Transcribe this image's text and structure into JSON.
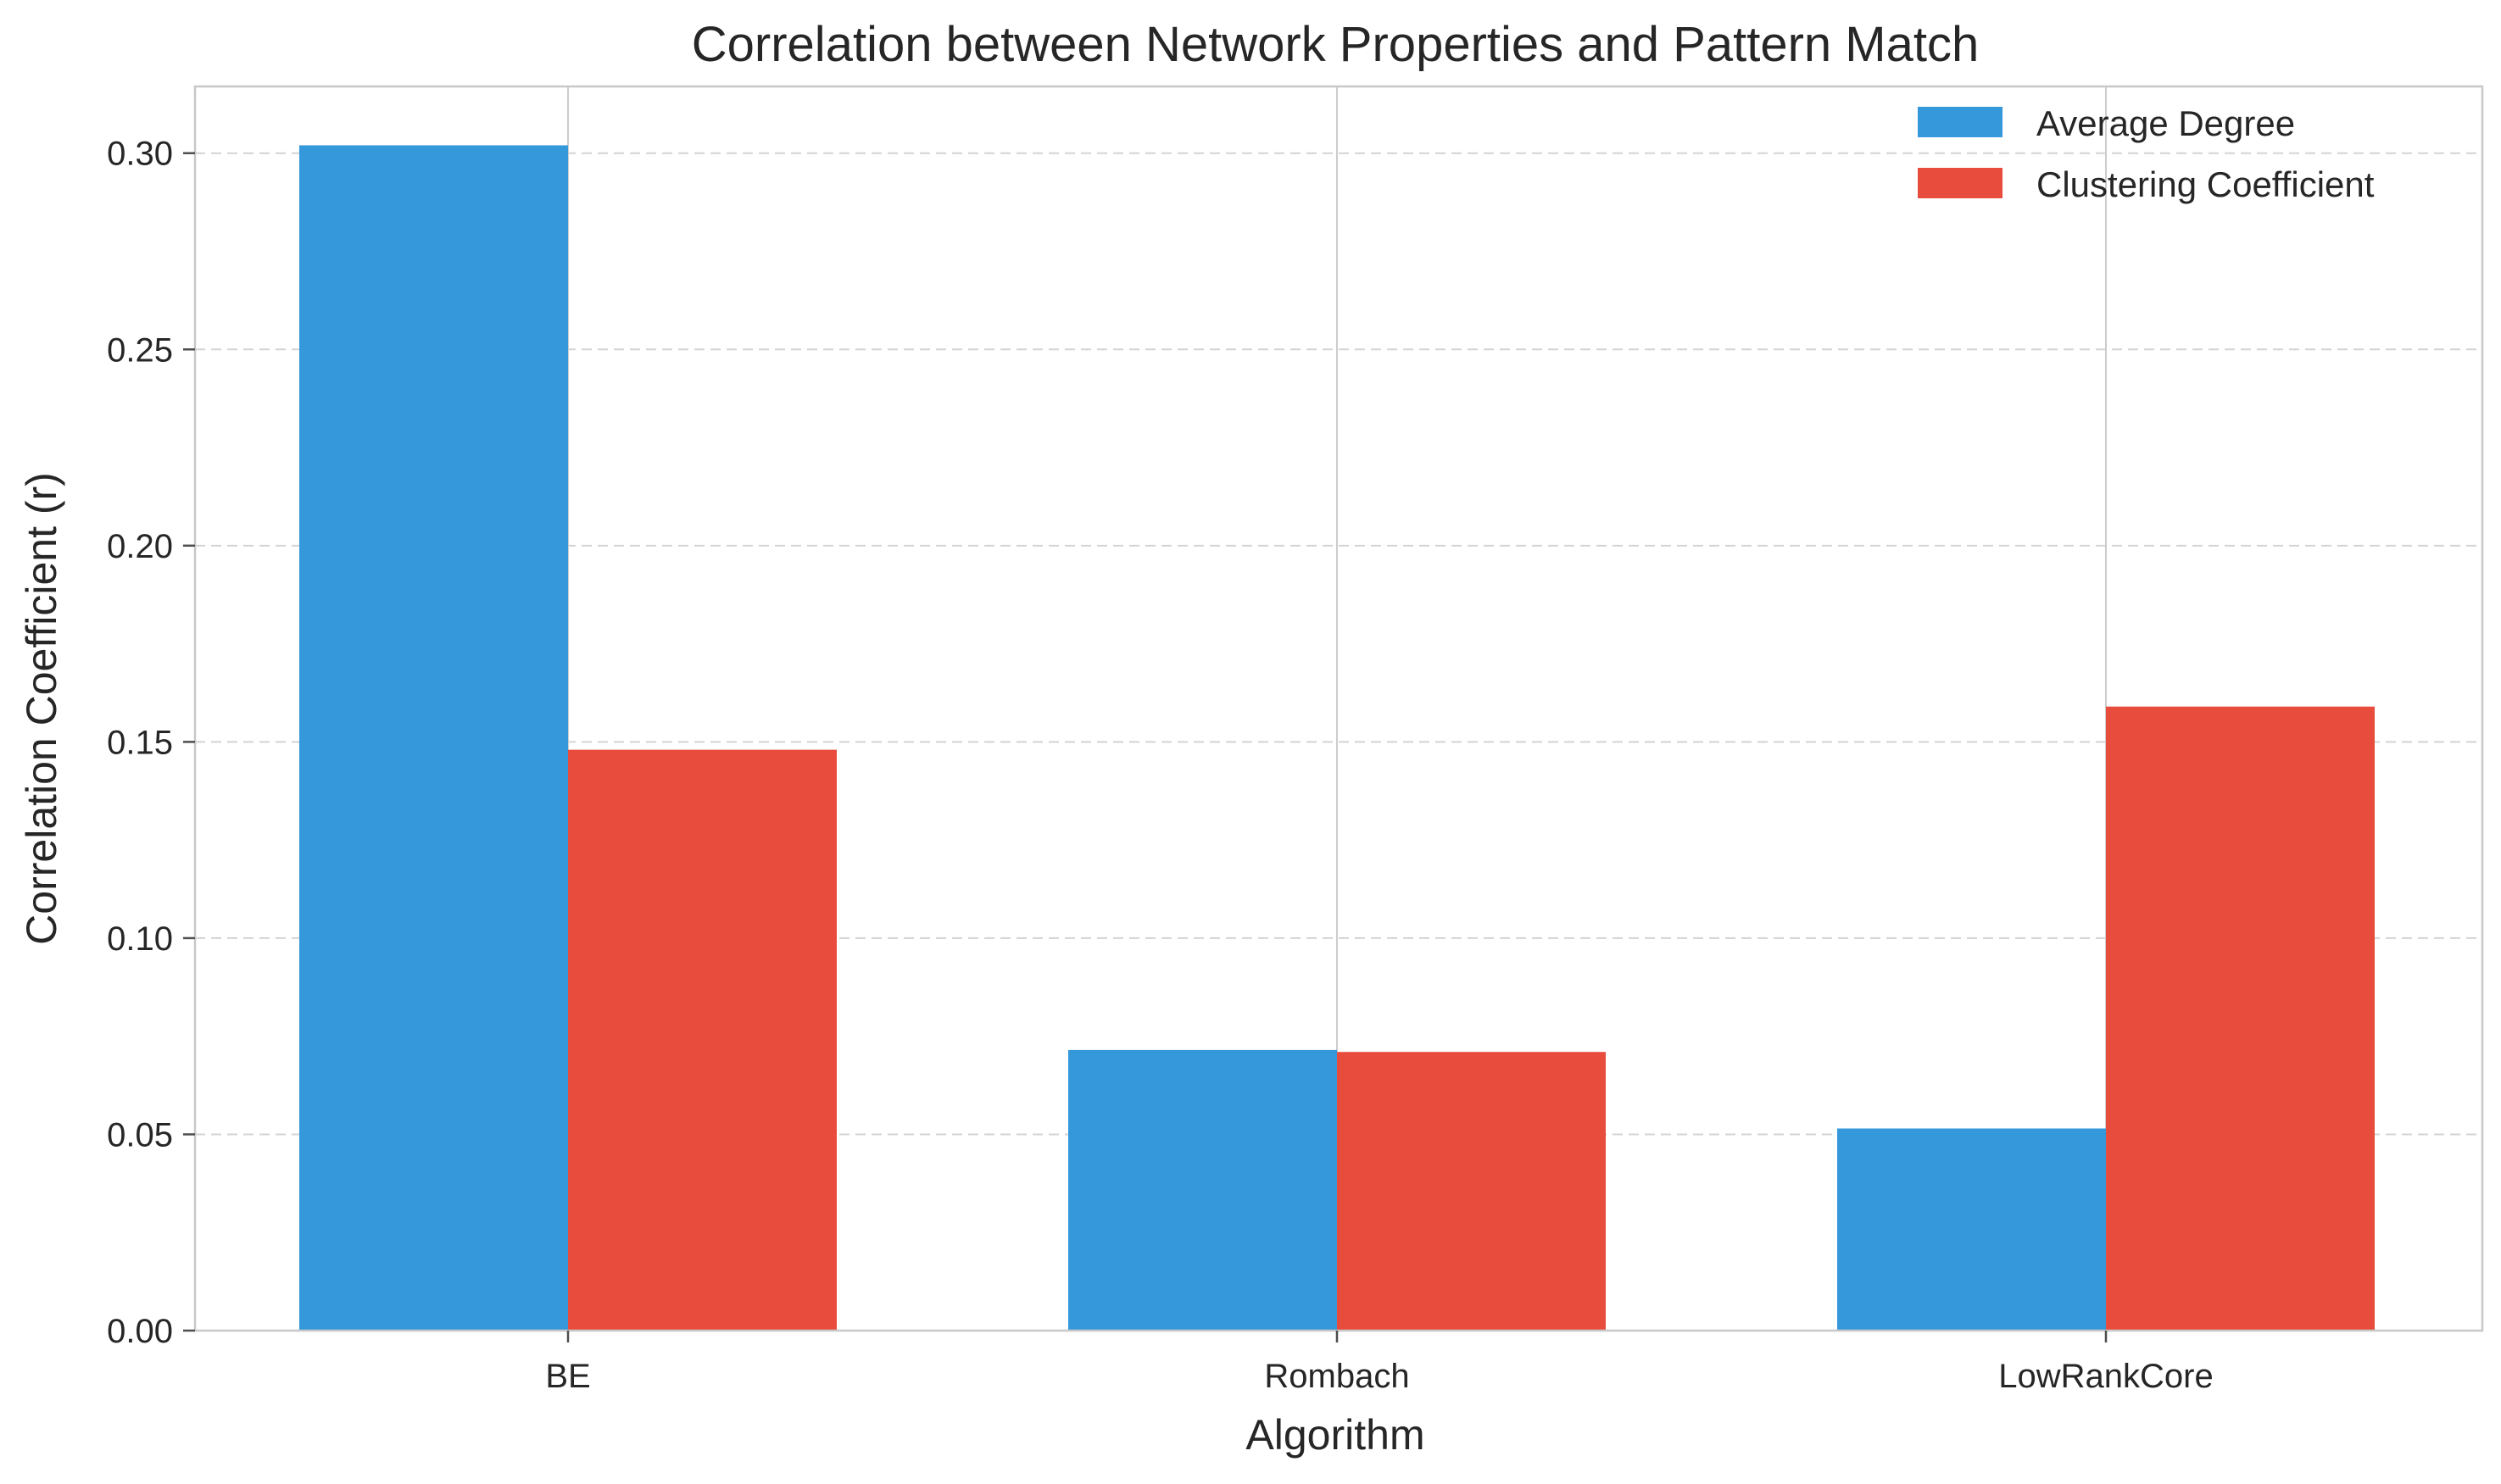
{
  "chart_data": {
    "type": "bar",
    "title": "Correlation between Network Properties and Pattern Match",
    "xlabel": "Algorithm",
    "ylabel": "Correlation Coefficient (r)",
    "categories": [
      "BE",
      "Rombach",
      "LowRankCore"
    ],
    "series": [
      {
        "name": "Average Degree",
        "color": "#3498db",
        "values": [
          0.302,
          0.0715,
          0.0515
        ]
      },
      {
        "name": "Clustering Coefficient",
        "color": "#e74c3c",
        "values": [
          0.148,
          0.071,
          0.159
        ]
      }
    ],
    "ylim": [
      0,
      0.317
    ],
    "yticks": [
      0.0,
      0.05,
      0.1,
      0.15,
      0.2,
      0.25,
      0.3
    ],
    "ytick_labels": [
      "0.00",
      "0.05",
      "0.10",
      "0.15",
      "0.20",
      "0.25",
      "0.30"
    ],
    "grid": true,
    "legend_position": "top-right"
  }
}
